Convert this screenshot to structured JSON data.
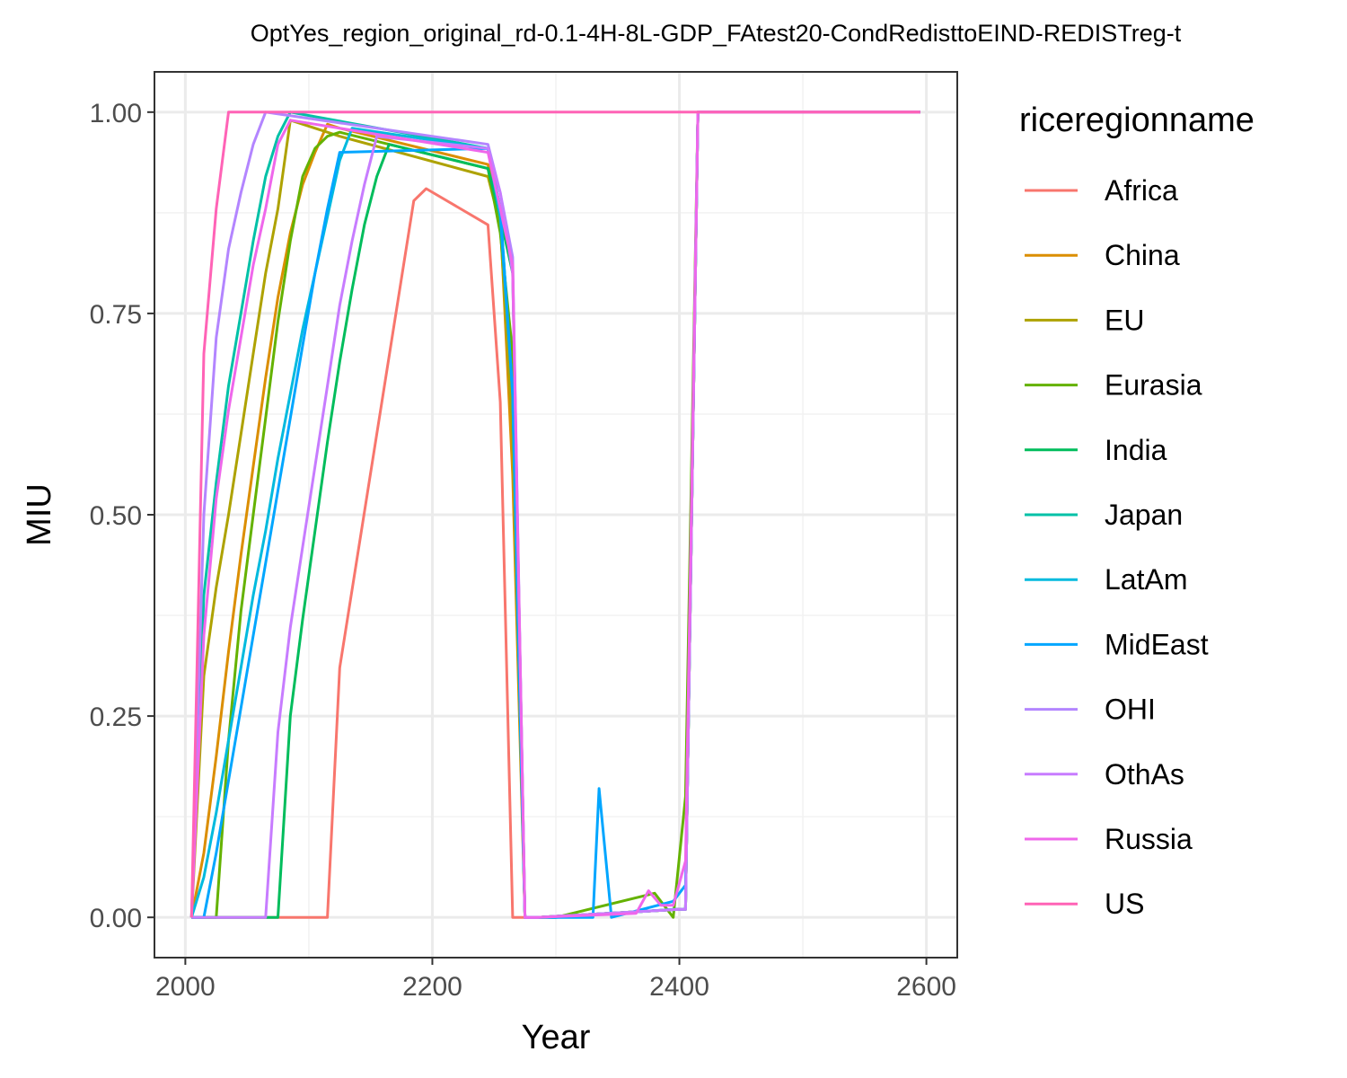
{
  "chart_data": {
    "type": "line",
    "title": "OptYes_region_original_rd-0.1-4H-8L-GDP_FAtest20-CondRedisttoEIND-REDISTreg-t",
    "xlabel": "Year",
    "ylabel": "MIU",
    "xlim": [
      1975,
      2625
    ],
    "ylim": [
      -0.05,
      1.05
    ],
    "x_ticks": [
      2000,
      2200,
      2400,
      2600
    ],
    "x_tick_labels": [
      "2000",
      "2200",
      "2400",
      "2600"
    ],
    "y_ticks": [
      0,
      0.25,
      0.5,
      0.75,
      1.0
    ],
    "y_tick_labels": [
      "0.00",
      "0.25",
      "0.50",
      "0.75",
      "1.00"
    ],
    "grid": true,
    "legend": {
      "title": "riceregionname",
      "position": "right"
    },
    "series": [
      {
        "name": "Africa",
        "color": "#F8766D",
        "x": [
          2005,
          2015,
          2115,
          2125,
          2185,
          2195,
          2245,
          2255,
          2265,
          2275,
          2285,
          2400,
          2405,
          2415,
          2595
        ],
        "y": [
          0,
          0,
          0,
          0.31,
          0.89,
          0.905,
          0.86,
          0.64,
          0.0,
          0.0,
          0.0,
          0.01,
          0.01,
          1.0,
          1.0
        ]
      },
      {
        "name": "China",
        "color": "#DB8E00",
        "x": [
          2005,
          2015,
          2025,
          2035,
          2045,
          2055,
          2065,
          2075,
          2085,
          2095,
          2105,
          2115,
          2125,
          2245,
          2255,
          2265,
          2275,
          2285,
          2400,
          2405,
          2415,
          2595
        ],
        "y": [
          0,
          0.08,
          0.2,
          0.33,
          0.45,
          0.56,
          0.67,
          0.77,
          0.85,
          0.91,
          0.95,
          0.985,
          0.98,
          0.935,
          0.87,
          0.55,
          0.0,
          0.0,
          0.01,
          0.01,
          1.0,
          1.0
        ]
      },
      {
        "name": "EU",
        "color": "#AEA200",
        "x": [
          2005,
          2015,
          2025,
          2035,
          2045,
          2055,
          2065,
          2075,
          2085,
          2115,
          2125,
          2245,
          2255,
          2265,
          2275,
          2285,
          2400,
          2405,
          2415,
          2595
        ],
        "y": [
          0,
          0.3,
          0.41,
          0.5,
          0.6,
          0.7,
          0.8,
          0.88,
          0.99,
          0.975,
          0.97,
          0.92,
          0.86,
          0.6,
          0.0,
          0.0,
          0.01,
          0.01,
          1.0,
          1.0
        ]
      },
      {
        "name": "Eurasia",
        "color": "#64B200",
        "x": [
          2005,
          2025,
          2035,
          2045,
          2055,
          2065,
          2075,
          2085,
          2095,
          2105,
          2115,
          2125,
          2245,
          2255,
          2265,
          2275,
          2285,
          2300,
          2380,
          2390,
          2395,
          2405,
          2415,
          2595
        ],
        "y": [
          0,
          0,
          0.22,
          0.38,
          0.5,
          0.62,
          0.74,
          0.84,
          0.92,
          0.955,
          0.97,
          0.975,
          0.93,
          0.85,
          0.7,
          0.0,
          0.0,
          0.0,
          0.03,
          0.01,
          0.0,
          0.15,
          1.0,
          1.0
        ]
      },
      {
        "name": "India",
        "color": "#00BD5C",
        "x": [
          2005,
          2075,
          2085,
          2095,
          2105,
          2115,
          2125,
          2135,
          2145,
          2155,
          2165,
          2245,
          2255,
          2265,
          2275,
          2285,
          2400,
          2405,
          2415,
          2595
        ],
        "y": [
          0,
          0,
          0.25,
          0.37,
          0.48,
          0.59,
          0.69,
          0.78,
          0.86,
          0.92,
          0.96,
          0.93,
          0.87,
          0.8,
          0.0,
          0.0,
          0.01,
          0.01,
          1.0,
          1.0
        ]
      },
      {
        "name": "Japan",
        "color": "#00C1A7",
        "x": [
          2005,
          2015,
          2025,
          2035,
          2045,
          2055,
          2065,
          2075,
          2085,
          2245,
          2255,
          2265,
          2275,
          2285,
          2400,
          2405,
          2415,
          2595
        ],
        "y": [
          0,
          0.4,
          0.54,
          0.66,
          0.75,
          0.84,
          0.92,
          0.97,
          1.0,
          0.955,
          0.88,
          0.65,
          0.0,
          0.0,
          0.01,
          0.01,
          1.0,
          1.0
        ]
      },
      {
        "name": "LatAm",
        "color": "#00BADE",
        "x": [
          2005,
          2015,
          2025,
          2035,
          2045,
          2055,
          2065,
          2075,
          2085,
          2095,
          2105,
          2115,
          2125,
          2135,
          2245,
          2255,
          2265,
          2275,
          2285,
          2300,
          2395,
          2400,
          2405,
          2415,
          2595
        ],
        "y": [
          0,
          0.05,
          0.13,
          0.22,
          0.31,
          0.4,
          0.48,
          0.57,
          0.65,
          0.73,
          0.8,
          0.87,
          0.94,
          0.98,
          0.955,
          0.87,
          0.65,
          0.0,
          0.0,
          0.0,
          0.01,
          0.01,
          0.01,
          1.0,
          1.0
        ]
      },
      {
        "name": "MidEast",
        "color": "#00A6FF",
        "x": [
          2005,
          2015,
          2025,
          2035,
          2045,
          2055,
          2065,
          2075,
          2085,
          2095,
          2105,
          2115,
          2125,
          2245,
          2255,
          2265,
          2275,
          2285,
          2325,
          2330,
          2335,
          2345,
          2395,
          2405,
          2415,
          2595
        ],
        "y": [
          0,
          0,
          0.08,
          0.17,
          0.26,
          0.35,
          0.44,
          0.53,
          0.62,
          0.71,
          0.8,
          0.88,
          0.95,
          0.955,
          0.88,
          0.65,
          0.0,
          0.0,
          0.0,
          0.0,
          0.16,
          0.0,
          0.02,
          0.04,
          1.0,
          1.0
        ]
      },
      {
        "name": "OHI",
        "color": "#B385FF",
        "x": [
          2005,
          2015,
          2025,
          2035,
          2045,
          2055,
          2065,
          2245,
          2255,
          2265,
          2275,
          2285,
          2400,
          2405,
          2415,
          2595
        ],
        "y": [
          0,
          0.5,
          0.72,
          0.83,
          0.9,
          0.96,
          1.0,
          0.96,
          0.9,
          0.82,
          0.0,
          0.0,
          0.01,
          0.01,
          1.0,
          1.0
        ]
      },
      {
        "name": "OthAs",
        "color": "#C77CFF",
        "x": [
          2005,
          2065,
          2075,
          2085,
          2095,
          2105,
          2115,
          2125,
          2135,
          2145,
          2155,
          2245,
          2255,
          2265,
          2275,
          2285,
          2400,
          2405,
          2415,
          2595
        ],
        "y": [
          0,
          0,
          0.23,
          0.36,
          0.46,
          0.56,
          0.66,
          0.76,
          0.84,
          0.91,
          0.97,
          0.955,
          0.9,
          0.8,
          0.0,
          0.0,
          0.01,
          0.01,
          1.0,
          1.0
        ]
      },
      {
        "name": "Russia",
        "color": "#EF67EB",
        "x": [
          2005,
          2015,
          2025,
          2035,
          2045,
          2055,
          2065,
          2075,
          2085,
          2245,
          2255,
          2265,
          2275,
          2285,
          2365,
          2375,
          2385,
          2395,
          2405,
          2415,
          2595
        ],
        "y": [
          0,
          0.35,
          0.52,
          0.63,
          0.72,
          0.81,
          0.88,
          0.96,
          0.99,
          0.95,
          0.88,
          0.81,
          0.0,
          0.0,
          0.005,
          0.033,
          0.015,
          0.015,
          0.07,
          1.0,
          1.0
        ]
      },
      {
        "name": "US",
        "color": "#FF63B6",
        "x": [
          2005,
          2015,
          2025,
          2035,
          2045,
          2400,
          2405,
          2595
        ],
        "y": [
          0,
          0.7,
          0.88,
          1.0,
          1.0,
          1.0,
          1.0,
          1.0
        ]
      }
    ]
  }
}
